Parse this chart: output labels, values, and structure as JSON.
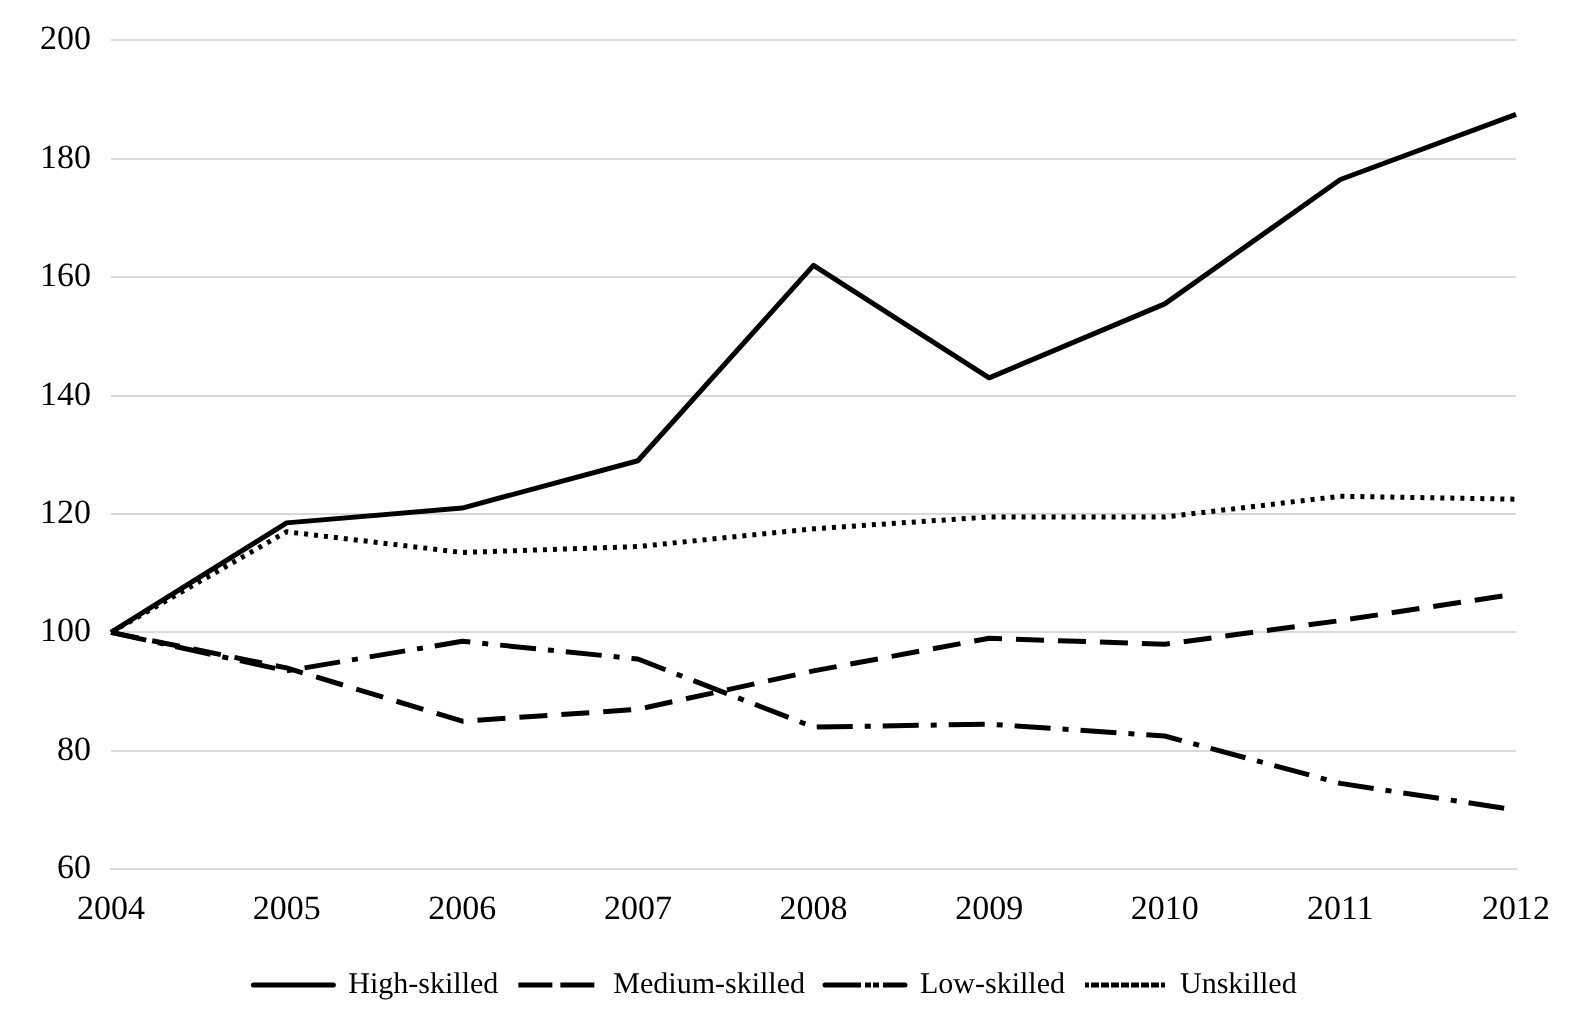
{
  "chart_data": {
    "type": "line",
    "categories": [
      "2004",
      "2005",
      "2006",
      "2007",
      "2008",
      "2009",
      "2010",
      "2011",
      "2012"
    ],
    "series": [
      {
        "name": "High-skilled",
        "color": "#000000",
        "line_style": "solid",
        "values": [
          100,
          118.5,
          121,
          129,
          162,
          143,
          155.5,
          176.5,
          187.5
        ]
      },
      {
        "name": "Medium-skilled",
        "color": "#000000",
        "line_style": "dashed",
        "values": [
          100,
          94,
          85,
          87,
          93.5,
          99,
          98,
          102,
          106.5
        ]
      },
      {
        "name": "Low-skilled",
        "color": "#000000",
        "line_style": "dashdot",
        "values": [
          100,
          93.5,
          98.5,
          95.5,
          84,
          84.5,
          82.5,
          74.5,
          70
        ]
      },
      {
        "name": "Unskilled",
        "color": "#000000",
        "line_style": "dotted",
        "values": [
          100,
          117,
          113.5,
          114.5,
          117.5,
          119.5,
          119.5,
          123,
          122.5
        ]
      }
    ],
    "ylim": [
      60,
      200
    ],
    "yticks": [
      60,
      80,
      100,
      120,
      140,
      160,
      180,
      200
    ],
    "grid": "y",
    "legend": "bottom",
    "marker": "none"
  }
}
